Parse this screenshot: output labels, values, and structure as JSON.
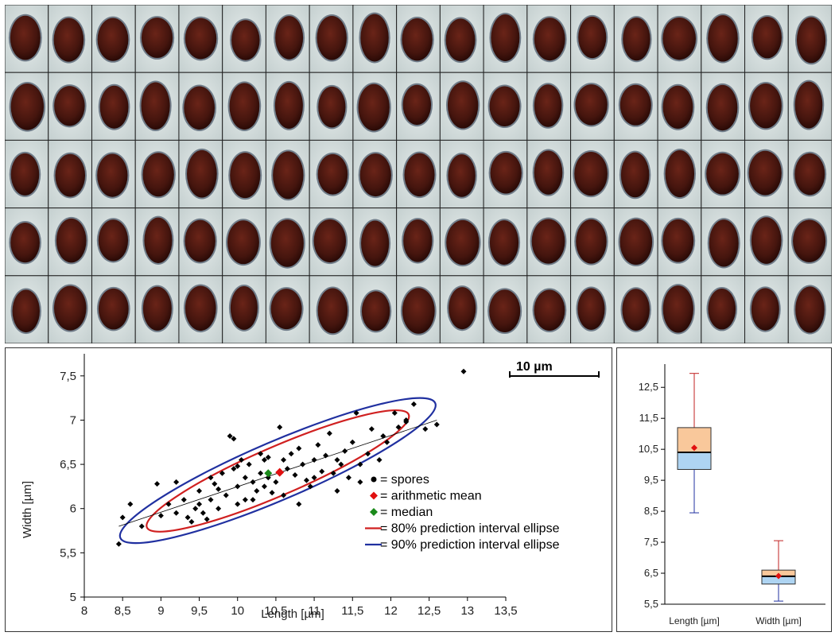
{
  "scale_bar": {
    "label": "10 µm",
    "length_um": 10
  },
  "colors": {
    "spore": "#000000",
    "mean": "#e01010",
    "median": "#1a8a1a",
    "ellipse80": "#d02020",
    "ellipse90": "#2030a0",
    "box_upper": "#f9c89b",
    "box_lower": "#aed4f2"
  },
  "chart_data": [
    {
      "type": "scatter",
      "xlabel": "Length [µm]",
      "ylabel": "Width [µm]",
      "xlim": [
        8,
        13.5
      ],
      "ylim": [
        5,
        7.75
      ],
      "xticks": [
        "8",
        "8,5",
        "9",
        "9,5",
        "10",
        "10,5",
        "11",
        "11,5",
        "12",
        "12,5",
        "13",
        "13,5"
      ],
      "yticks": [
        "5",
        "5,5",
        "6",
        "6,5",
        "7",
        "7,5"
      ],
      "legend": [
        {
          "key": "spores",
          "label": "= spores"
        },
        {
          "key": "mean",
          "label": "= arithmetic mean"
        },
        {
          "key": "median",
          "label": "= median"
        },
        {
          "key": "ellipse80",
          "label": "= 80% prediction interval ellipse"
        },
        {
          "key": "ellipse90",
          "label": "= 90% prediction interval ellipse"
        }
      ],
      "mean": {
        "x": 10.55,
        "y": 6.41
      },
      "median": {
        "x": 10.4,
        "y": 6.4
      },
      "regression_line": {
        "x": [
          8.45,
          12.6
        ],
        "y": [
          5.8,
          7.0
        ]
      },
      "ellipse80": {
        "x_min": 8.8,
        "x_max": 12.25,
        "y_min": 5.78,
        "y_max": 7.07
      },
      "ellipse90": {
        "x_min": 8.45,
        "x_max": 12.6,
        "y_min": 5.66,
        "y_max": 7.2
      },
      "points": [
        [
          8.45,
          5.6
        ],
        [
          8.5,
          5.9
        ],
        [
          8.6,
          6.05
        ],
        [
          8.75,
          5.8
        ],
        [
          8.95,
          6.28
        ],
        [
          9.0,
          5.92
        ],
        [
          9.1,
          6.05
        ],
        [
          9.2,
          5.95
        ],
        [
          9.3,
          6.1
        ],
        [
          9.35,
          5.9
        ],
        [
          9.4,
          5.85
        ],
        [
          9.45,
          6.0
        ],
        [
          9.5,
          6.2
        ],
        [
          9.55,
          5.95
        ],
        [
          9.6,
          5.88
        ],
        [
          9.65,
          6.35
        ],
        [
          9.65,
          6.1
        ],
        [
          9.7,
          6.28
        ],
        [
          9.75,
          6.0
        ],
        [
          9.8,
          6.4
        ],
        [
          9.85,
          6.15
        ],
        [
          9.9,
          6.82
        ],
        [
          9.95,
          6.79
        ],
        [
          9.95,
          6.45
        ],
        [
          10.0,
          6.25
        ],
        [
          10.0,
          6.05
        ],
        [
          10.05,
          6.55
        ],
        [
          10.1,
          6.35
        ],
        [
          10.1,
          6.1
        ],
        [
          10.15,
          6.5
        ],
        [
          10.2,
          6.3
        ],
        [
          10.25,
          6.2
        ],
        [
          10.3,
          6.62
        ],
        [
          10.3,
          6.4
        ],
        [
          10.35,
          6.55
        ],
        [
          10.35,
          6.25
        ],
        [
          10.4,
          6.35
        ],
        [
          10.45,
          6.18
        ],
        [
          10.5,
          6.3
        ],
        [
          10.55,
          6.92
        ],
        [
          10.6,
          6.55
        ],
        [
          10.65,
          6.45
        ],
        [
          10.7,
          6.62
        ],
        [
          10.75,
          6.38
        ],
        [
          10.8,
          6.68
        ],
        [
          10.85,
          6.5
        ],
        [
          10.9,
          6.32
        ],
        [
          10.95,
          6.25
        ],
        [
          11.0,
          6.55
        ],
        [
          11.05,
          6.72
        ],
        [
          11.1,
          6.42
        ],
        [
          11.15,
          6.6
        ],
        [
          11.2,
          6.85
        ],
        [
          11.25,
          6.4
        ],
        [
          11.3,
          6.2
        ],
        [
          11.35,
          6.5
        ],
        [
          11.4,
          6.65
        ],
        [
          11.45,
          6.35
        ],
        [
          11.5,
          6.75
        ],
        [
          11.55,
          7.08
        ],
        [
          11.6,
          6.5
        ],
        [
          11.7,
          6.62
        ],
        [
          11.75,
          6.9
        ],
        [
          11.85,
          6.55
        ],
        [
          11.95,
          6.75
        ],
        [
          12.05,
          7.08
        ],
        [
          12.1,
          6.92
        ],
        [
          12.2,
          7.0
        ],
        [
          12.3,
          7.18
        ],
        [
          12.45,
          6.9
        ],
        [
          12.6,
          6.95
        ],
        [
          12.95,
          7.55
        ],
        [
          9.2,
          6.3
        ],
        [
          9.5,
          6.05
        ],
        [
          9.75,
          6.22
        ],
        [
          10.0,
          6.48
        ],
        [
          10.2,
          6.1
        ],
        [
          10.4,
          6.58
        ],
        [
          10.6,
          6.15
        ],
        [
          10.8,
          6.05
        ],
        [
          11.0,
          6.35
        ],
        [
          11.3,
          6.55
        ],
        [
          11.6,
          6.3
        ],
        [
          11.9,
          6.82
        ],
        [
          12.2,
          6.98
        ]
      ]
    },
    {
      "type": "box",
      "categories": [
        "Length [µm]",
        "Width [µm]"
      ],
      "ylim": [
        5.5,
        13.25
      ],
      "yticks": [
        "5,5",
        "6,5",
        "7,5",
        "8,5",
        "9,5",
        "10,5",
        "11,5",
        "12,5"
      ],
      "boxes": [
        {
          "min": 8.45,
          "q1": 9.85,
          "median": 10.4,
          "q3": 11.2,
          "max": 12.95,
          "mean": 10.55
        },
        {
          "min": 5.6,
          "q1": 6.15,
          "median": 6.4,
          "q3": 6.6,
          "max": 7.55,
          "mean": 6.41
        }
      ]
    }
  ]
}
